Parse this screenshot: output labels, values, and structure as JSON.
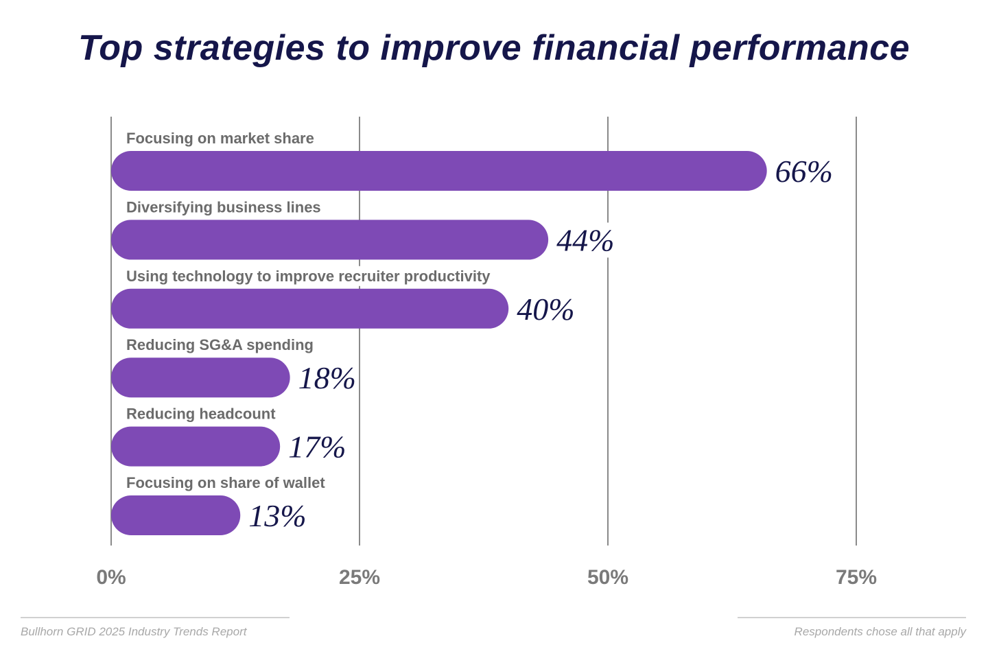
{
  "chart_data": {
    "type": "bar",
    "orientation": "horizontal",
    "title": "Top strategies to improve financial performance",
    "categories": [
      "Focusing on market share",
      "Diversifying business lines",
      "Using technology to improve recruiter productivity",
      "Reducing SG&A spending",
      "Reducing headcount",
      "Focusing on share of wallet"
    ],
    "values": [
      66,
      44,
      40,
      18,
      17,
      13
    ],
    "value_labels": [
      "66%",
      "44%",
      "40%",
      "18%",
      "17%",
      "13%"
    ],
    "xlim": [
      0,
      75
    ],
    "x_ticks": [
      0,
      25,
      50,
      75
    ],
    "x_tick_labels": [
      "0%",
      "25%",
      "50%",
      "75%"
    ],
    "grid": true,
    "legend": "none",
    "colors": {
      "bar": "#7e4ab5",
      "title": "#15164a",
      "value_label": "#15164a",
      "category_label": "#6b6b6b",
      "grid": "#8a8a8a",
      "tick_label": "#7a7a7a"
    }
  },
  "footer": {
    "source": "Bullhorn GRID 2025 Industry Trends Report",
    "note": "Respondents chose all that apply"
  }
}
